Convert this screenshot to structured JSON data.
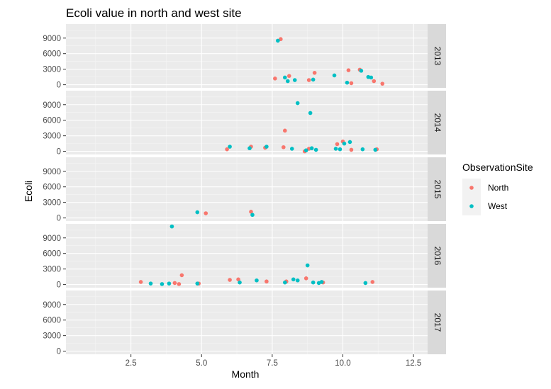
{
  "chart_data": {
    "type": "scatter",
    "title": "Ecoli value in north and west site",
    "xlabel": "Month",
    "ylabel": "Ecoli",
    "xlim": [
      0.2,
      13.0
    ],
    "ylim": [
      -600,
      11700
    ],
    "x_ticks": [
      2.5,
      5.0,
      7.5,
      10.0,
      12.5
    ],
    "x_tick_labels": [
      "2.5",
      "5.0",
      "7.5",
      "10.0",
      "12.5"
    ],
    "y_ticks": [
      0,
      3000,
      6000,
      9000
    ],
    "y_tick_labels": [
      "0",
      "3000",
      "6000",
      "9000"
    ],
    "grid": true,
    "legend": {
      "title": "ObservationSite",
      "position": "right",
      "entries": [
        "North",
        "West"
      ]
    },
    "colors": {
      "North": "#F8766D",
      "West": "#00BFC4",
      "panel_bg": "#EBEBEB",
      "strip_bg": "#D9D9D9"
    },
    "facets": [
      {
        "label": "2013",
        "series": [
          {
            "name": "North",
            "x": [
              7.6,
              7.8,
              8.1,
              8.8,
              9.0,
              10.2,
              10.3,
              10.6,
              11.1,
              11.4
            ],
            "y": [
              1200,
              8800,
              1700,
              900,
              2300,
              2800,
              300,
              2900,
              700,
              200
            ]
          },
          {
            "name": "West",
            "x": [
              7.7,
              7.95,
              8.05,
              8.3,
              8.95,
              9.7,
              10.15,
              10.65,
              10.9,
              11.0
            ],
            "y": [
              8500,
              1400,
              700,
              900,
              1000,
              1800,
              400,
              2700,
              1500,
              1400
            ]
          }
        ]
      },
      {
        "label": "2014",
        "series": [
          {
            "name": "North",
            "x": [
              5.9,
              6.75,
              7.25,
              7.9,
              7.95,
              8.65,
              8.8,
              9.8,
              10.0,
              10.3,
              11.2
            ],
            "y": [
              400,
              900,
              700,
              800,
              4000,
              0,
              500,
              1400,
              1900,
              300,
              400
            ]
          },
          {
            "name": "West",
            "x": [
              6.0,
              6.7,
              7.3,
              8.2,
              8.4,
              8.7,
              8.85,
              8.9,
              9.05,
              9.75,
              9.9,
              10.05,
              10.25,
              10.7,
              11.15
            ],
            "y": [
              900,
              600,
              900,
              500,
              9300,
              200,
              7400,
              600,
              300,
              500,
              400,
              1500,
              1800,
              400,
              300
            ]
          }
        ]
      },
      {
        "label": "2015",
        "series": [
          {
            "name": "North",
            "x": [
              5.15,
              6.75
            ],
            "y": [
              900,
              1200
            ]
          },
          {
            "name": "West",
            "x": [
              4.85,
              6.8
            ],
            "y": [
              1100,
              600
            ]
          }
        ]
      },
      {
        "label": "2016",
        "series": [
          {
            "name": "North",
            "x": [
              2.85,
              4.05,
              4.2,
              4.3,
              4.9,
              6.0,
              6.3,
              7.3,
              8.0,
              8.7,
              9.3,
              11.05
            ],
            "y": [
              500,
              300,
              100,
              1800,
              200,
              900,
              1000,
              600,
              600,
              1200,
              400,
              500
            ]
          },
          {
            "name": "West",
            "x": [
              3.2,
              3.6,
              3.85,
              3.95,
              4.85,
              6.35,
              6.95,
              7.95,
              8.25,
              8.4,
              8.75,
              8.95,
              9.15,
              9.25,
              10.8
            ],
            "y": [
              200,
              100,
              200,
              11200,
              200,
              400,
              800,
              400,
              1000,
              800,
              3700,
              400,
              300,
              500,
              300
            ]
          }
        ]
      },
      {
        "label": "2017",
        "series": [
          {
            "name": "North",
            "x": [],
            "y": []
          },
          {
            "name": "West",
            "x": [],
            "y": []
          }
        ]
      }
    ]
  }
}
